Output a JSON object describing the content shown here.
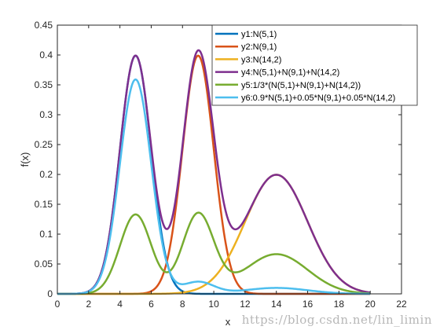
{
  "chart_data": {
    "type": "line",
    "xlabel": "x",
    "ylabel": "f(x)",
    "xlim": [
      0,
      22
    ],
    "ylim": [
      0,
      0.45
    ],
    "xticks": [
      0,
      2,
      4,
      6,
      8,
      10,
      12,
      14,
      16,
      18,
      20,
      22
    ],
    "yticks": [
      0,
      0.05,
      0.1,
      0.15,
      0.2,
      0.25,
      0.3,
      0.35,
      0.4,
      0.45
    ],
    "x_domain": [
      0,
      20
    ],
    "grid": false,
    "legend_position": "top-right",
    "series": [
      {
        "name": "y1:N(5,1)",
        "color": "#0072BD",
        "mixture": [
          [
            1,
            5,
            1
          ]
        ]
      },
      {
        "name": "y2:N(9,1)",
        "color": "#D95319",
        "mixture": [
          [
            1,
            9,
            1
          ]
        ]
      },
      {
        "name": "y3:N(14,2)",
        "color": "#EDB120",
        "mixture": [
          [
            1,
            14,
            2
          ]
        ]
      },
      {
        "name": "y4:N(5,1)+N(9,1)+N(14,2)",
        "color": "#7E2F8E",
        "mixture": [
          [
            1,
            5,
            1
          ],
          [
            1,
            9,
            1
          ],
          [
            1,
            14,
            2
          ]
        ]
      },
      {
        "name": "y5:1/3*(N(5,1)+N(9,1)+N(14,2))",
        "color": "#77AC30",
        "mixture": [
          [
            0.3333333,
            5,
            1
          ],
          [
            0.3333333,
            9,
            1
          ],
          [
            0.3333333,
            14,
            2
          ]
        ]
      },
      {
        "name": "y6:0.9*N(5,1)+0.05*N(9,1)+0.05*N(14,2)",
        "color": "#4DBEEE",
        "mixture": [
          [
            0.9,
            5,
            1
          ],
          [
            0.05,
            9,
            1
          ],
          [
            0.05,
            14,
            2
          ]
        ]
      }
    ]
  },
  "watermark": "https://blog.csdn.net/lin_limin"
}
